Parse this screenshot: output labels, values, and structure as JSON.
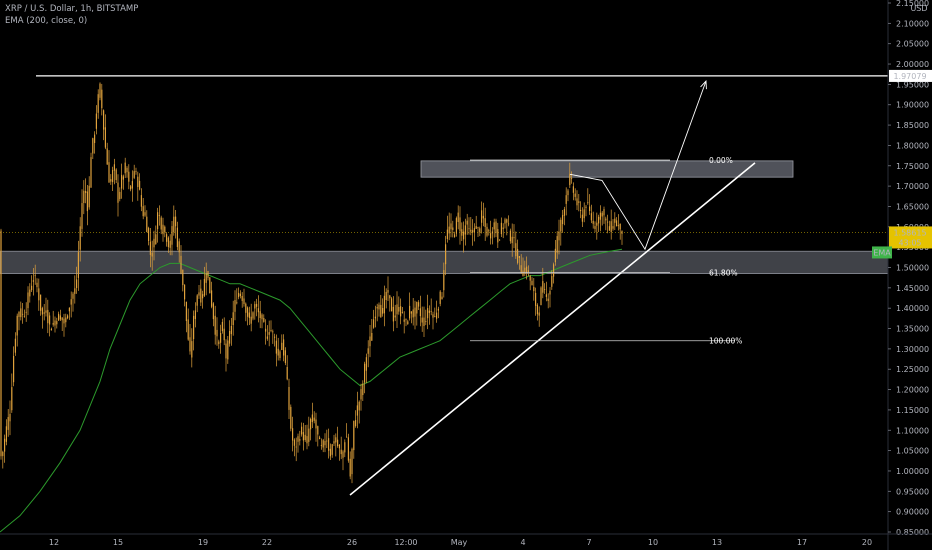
{
  "header": {
    "title": "XRP / U.S. Dollar, 1h, BITSTAMP",
    "indicator": "EMA (200, close, 0)"
  },
  "colors": {
    "background": "#000000",
    "candle": "#e0a23c",
    "ema": "#2c9a2c",
    "price_tag": "#e5c300",
    "ema_tag": "#3fb54a",
    "zone": "#6b6e78",
    "drawing": "#ffffff"
  },
  "chart_data": {
    "type": "candlestick",
    "currency": "USD",
    "ylim": [
      0.85,
      2.15
    ],
    "y_ticks": [
      "2.15000",
      "2.10000",
      "2.05000",
      "2.00000",
      "1.95000",
      "1.90000",
      "1.85000",
      "1.80000",
      "1.75000",
      "1.70000",
      "1.65000",
      "1.60000",
      "1.55000",
      "1.50000",
      "1.45000",
      "1.40000",
      "1.35000",
      "1.30000",
      "1.25000",
      "1.20000",
      "1.15000",
      "1.10000",
      "1.05000",
      "1.00000",
      "0.95000",
      "0.90000",
      "0.85000"
    ],
    "x_ticks": [
      "12",
      "15",
      "19",
      "22",
      "26",
      "12:00",
      "May",
      "4",
      "7",
      "10",
      "13",
      "17",
      "20"
    ],
    "current_price": "1.58615",
    "countdown": "43:05",
    "ema_label": "EMA",
    "resistance_level": "1.97079",
    "fib_labels": [
      "0.00%",
      "61.80%",
      "100.00%"
    ],
    "fib_levels": [
      1.764,
      1.488,
      1.32
    ],
    "resistance_zone": [
      1.722,
      1.762
    ],
    "support_zone": [
      1.485,
      1.54
    ],
    "price_path": [
      [
        0,
        1.03
      ],
      [
        3,
        1.05
      ],
      [
        6,
        1.1
      ],
      [
        10,
        1.15
      ],
      [
        14,
        1.3
      ],
      [
        18,
        1.4
      ],
      [
        22,
        1.38
      ],
      [
        26,
        1.4
      ],
      [
        30,
        1.45
      ],
      [
        34,
        1.48
      ],
      [
        38,
        1.44
      ],
      [
        42,
        1.38
      ],
      [
        46,
        1.4
      ],
      [
        50,
        1.35
      ],
      [
        55,
        1.37
      ],
      [
        60,
        1.38
      ],
      [
        65,
        1.36
      ],
      [
        68,
        1.4
      ],
      [
        72,
        1.43
      ],
      [
        76,
        1.45
      ],
      [
        79,
        1.56
      ],
      [
        82,
        1.66
      ],
      [
        85,
        1.7
      ],
      [
        88,
        1.64
      ],
      [
        91,
        1.78
      ],
      [
        94,
        1.82
      ],
      [
        97,
        1.9
      ],
      [
        100,
        1.94
      ],
      [
        103,
        1.86
      ],
      [
        106,
        1.78
      ],
      [
        110,
        1.7
      ],
      [
        114,
        1.75
      ],
      [
        118,
        1.67
      ],
      [
        122,
        1.72
      ],
      [
        126,
        1.75
      ],
      [
        130,
        1.68
      ],
      [
        134,
        1.74
      ],
      [
        138,
        1.71
      ],
      [
        142,
        1.64
      ],
      [
        146,
        1.62
      ],
      [
        150,
        1.53
      ],
      [
        154,
        1.56
      ],
      [
        158,
        1.64
      ],
      [
        162,
        1.6
      ],
      [
        166,
        1.58
      ],
      [
        170,
        1.55
      ],
      [
        174,
        1.63
      ],
      [
        178,
        1.55
      ],
      [
        182,
        1.48
      ],
      [
        186,
        1.38
      ],
      [
        190,
        1.28
      ],
      [
        194,
        1.38
      ],
      [
        198,
        1.45
      ],
      [
        202,
        1.42
      ],
      [
        206,
        1.5
      ],
      [
        210,
        1.44
      ],
      [
        214,
        1.37
      ],
      [
        218,
        1.3
      ],
      [
        222,
        1.36
      ],
      [
        226,
        1.28
      ],
      [
        230,
        1.34
      ],
      [
        234,
        1.4
      ],
      [
        238,
        1.44
      ],
      [
        242,
        1.43
      ],
      [
        246,
        1.4
      ],
      [
        250,
        1.36
      ],
      [
        254,
        1.41
      ],
      [
        258,
        1.39
      ],
      [
        262,
        1.37
      ],
      [
        266,
        1.33
      ],
      [
        270,
        1.35
      ],
      [
        274,
        1.33
      ],
      [
        278,
        1.28
      ],
      [
        282,
        1.32
      ],
      [
        286,
        1.25
      ],
      [
        290,
        1.12
      ],
      [
        294,
        1.05
      ],
      [
        298,
        1.08
      ],
      [
        302,
        1.1
      ],
      [
        306,
        1.06
      ],
      [
        310,
        1.12
      ],
      [
        314,
        1.13
      ],
      [
        318,
        1.08
      ],
      [
        322,
        1.05
      ],
      [
        326,
        1.09
      ],
      [
        330,
        1.04
      ],
      [
        334,
        1.08
      ],
      [
        338,
        1.06
      ],
      [
        342,
        1.03
      ],
      [
        346,
        1.1
      ],
      [
        350,
        0.98
      ],
      [
        354,
        1.12
      ],
      [
        358,
        1.16
      ],
      [
        362,
        1.2
      ],
      [
        366,
        1.28
      ],
      [
        370,
        1.32
      ],
      [
        374,
        1.38
      ],
      [
        378,
        1.42
      ],
      [
        382,
        1.38
      ],
      [
        386,
        1.44
      ],
      [
        390,
        1.42
      ],
      [
        394,
        1.37
      ],
      [
        398,
        1.41
      ],
      [
        402,
        1.38
      ],
      [
        406,
        1.36
      ],
      [
        410,
        1.4
      ],
      [
        414,
        1.38
      ],
      [
        418,
        1.41
      ],
      [
        422,
        1.36
      ],
      [
        426,
        1.38
      ],
      [
        430,
        1.4
      ],
      [
        434,
        1.37
      ],
      [
        438,
        1.41
      ],
      [
        442,
        1.44
      ],
      [
        446,
        1.58
      ],
      [
        450,
        1.6
      ],
      [
        454,
        1.58
      ],
      [
        458,
        1.63
      ],
      [
        462,
        1.57
      ],
      [
        466,
        1.61
      ],
      [
        470,
        1.58
      ],
      [
        474,
        1.6
      ],
      [
        478,
        1.59
      ],
      [
        482,
        1.63
      ],
      [
        486,
        1.59
      ],
      [
        490,
        1.58
      ],
      [
        494,
        1.61
      ],
      [
        498,
        1.57
      ],
      [
        502,
        1.6
      ],
      [
        506,
        1.62
      ],
      [
        510,
        1.58
      ],
      [
        514,
        1.56
      ],
      [
        518,
        1.52
      ],
      [
        522,
        1.49
      ],
      [
        526,
        1.5
      ],
      [
        530,
        1.47
      ],
      [
        534,
        1.43
      ],
      [
        538,
        1.38
      ],
      [
        542,
        1.46
      ],
      [
        546,
        1.42
      ],
      [
        550,
        1.45
      ],
      [
        554,
        1.52
      ],
      [
        558,
        1.58
      ],
      [
        562,
        1.62
      ],
      [
        566,
        1.68
      ],
      [
        570,
        1.72
      ],
      [
        574,
        1.68
      ],
      [
        578,
        1.65
      ],
      [
        582,
        1.62
      ],
      [
        586,
        1.66
      ],
      [
        590,
        1.63
      ],
      [
        594,
        1.6
      ],
      [
        598,
        1.62
      ],
      [
        602,
        1.64
      ],
      [
        606,
        1.61
      ],
      [
        610,
        1.59
      ],
      [
        614,
        1.62
      ],
      [
        618,
        1.6
      ],
      [
        622,
        1.59
      ]
    ],
    "ema_path": [
      [
        0,
        0.85
      ],
      [
        20,
        0.89
      ],
      [
        40,
        0.95
      ],
      [
        60,
        1.02
      ],
      [
        80,
        1.1
      ],
      [
        100,
        1.22
      ],
      [
        110,
        1.3
      ],
      [
        120,
        1.36
      ],
      [
        130,
        1.42
      ],
      [
        140,
        1.46
      ],
      [
        150,
        1.48
      ],
      [
        160,
        1.5
      ],
      [
        170,
        1.51
      ],
      [
        180,
        1.51
      ],
      [
        190,
        1.5
      ],
      [
        200,
        1.49
      ],
      [
        210,
        1.48
      ],
      [
        220,
        1.47
      ],
      [
        230,
        1.46
      ],
      [
        240,
        1.46
      ],
      [
        250,
        1.45
      ],
      [
        260,
        1.44
      ],
      [
        270,
        1.43
      ],
      [
        280,
        1.42
      ],
      [
        290,
        1.4
      ],
      [
        300,
        1.37
      ],
      [
        310,
        1.34
      ],
      [
        320,
        1.31
      ],
      [
        330,
        1.28
      ],
      [
        340,
        1.25
      ],
      [
        350,
        1.23
      ],
      [
        360,
        1.21
      ],
      [
        370,
        1.22
      ],
      [
        380,
        1.24
      ],
      [
        390,
        1.26
      ],
      [
        400,
        1.28
      ],
      [
        410,
        1.29
      ],
      [
        420,
        1.3
      ],
      [
        430,
        1.31
      ],
      [
        440,
        1.32
      ],
      [
        450,
        1.34
      ],
      [
        460,
        1.36
      ],
      [
        470,
        1.38
      ],
      [
        480,
        1.4
      ],
      [
        490,
        1.42
      ],
      [
        500,
        1.44
      ],
      [
        510,
        1.46
      ],
      [
        520,
        1.47
      ],
      [
        530,
        1.48
      ],
      [
        540,
        1.48
      ],
      [
        550,
        1.49
      ],
      [
        560,
        1.5
      ],
      [
        570,
        1.51
      ],
      [
        580,
        1.52
      ],
      [
        590,
        1.53
      ],
      [
        600,
        1.535
      ],
      [
        610,
        1.54
      ],
      [
        622,
        1.545
      ]
    ],
    "drawings": {
      "trendline": [
        [
          350,
          0.941
        ],
        [
          755,
          1.757
        ]
      ],
      "projection": [
        [
          570,
          1.729
        ],
        [
          602,
          1.714
        ],
        [
          645,
          1.545
        ],
        [
          706,
          1.958
        ]
      ],
      "resistance_line": [
        [
          36,
          1.971
        ],
        [
          888,
          1.971
        ]
      ],
      "fib_lines": [
        [
          470,
          670,
          1.764
        ],
        [
          470,
          670,
          1.488
        ],
        [
          470,
          735,
          1.32
        ]
      ]
    }
  }
}
